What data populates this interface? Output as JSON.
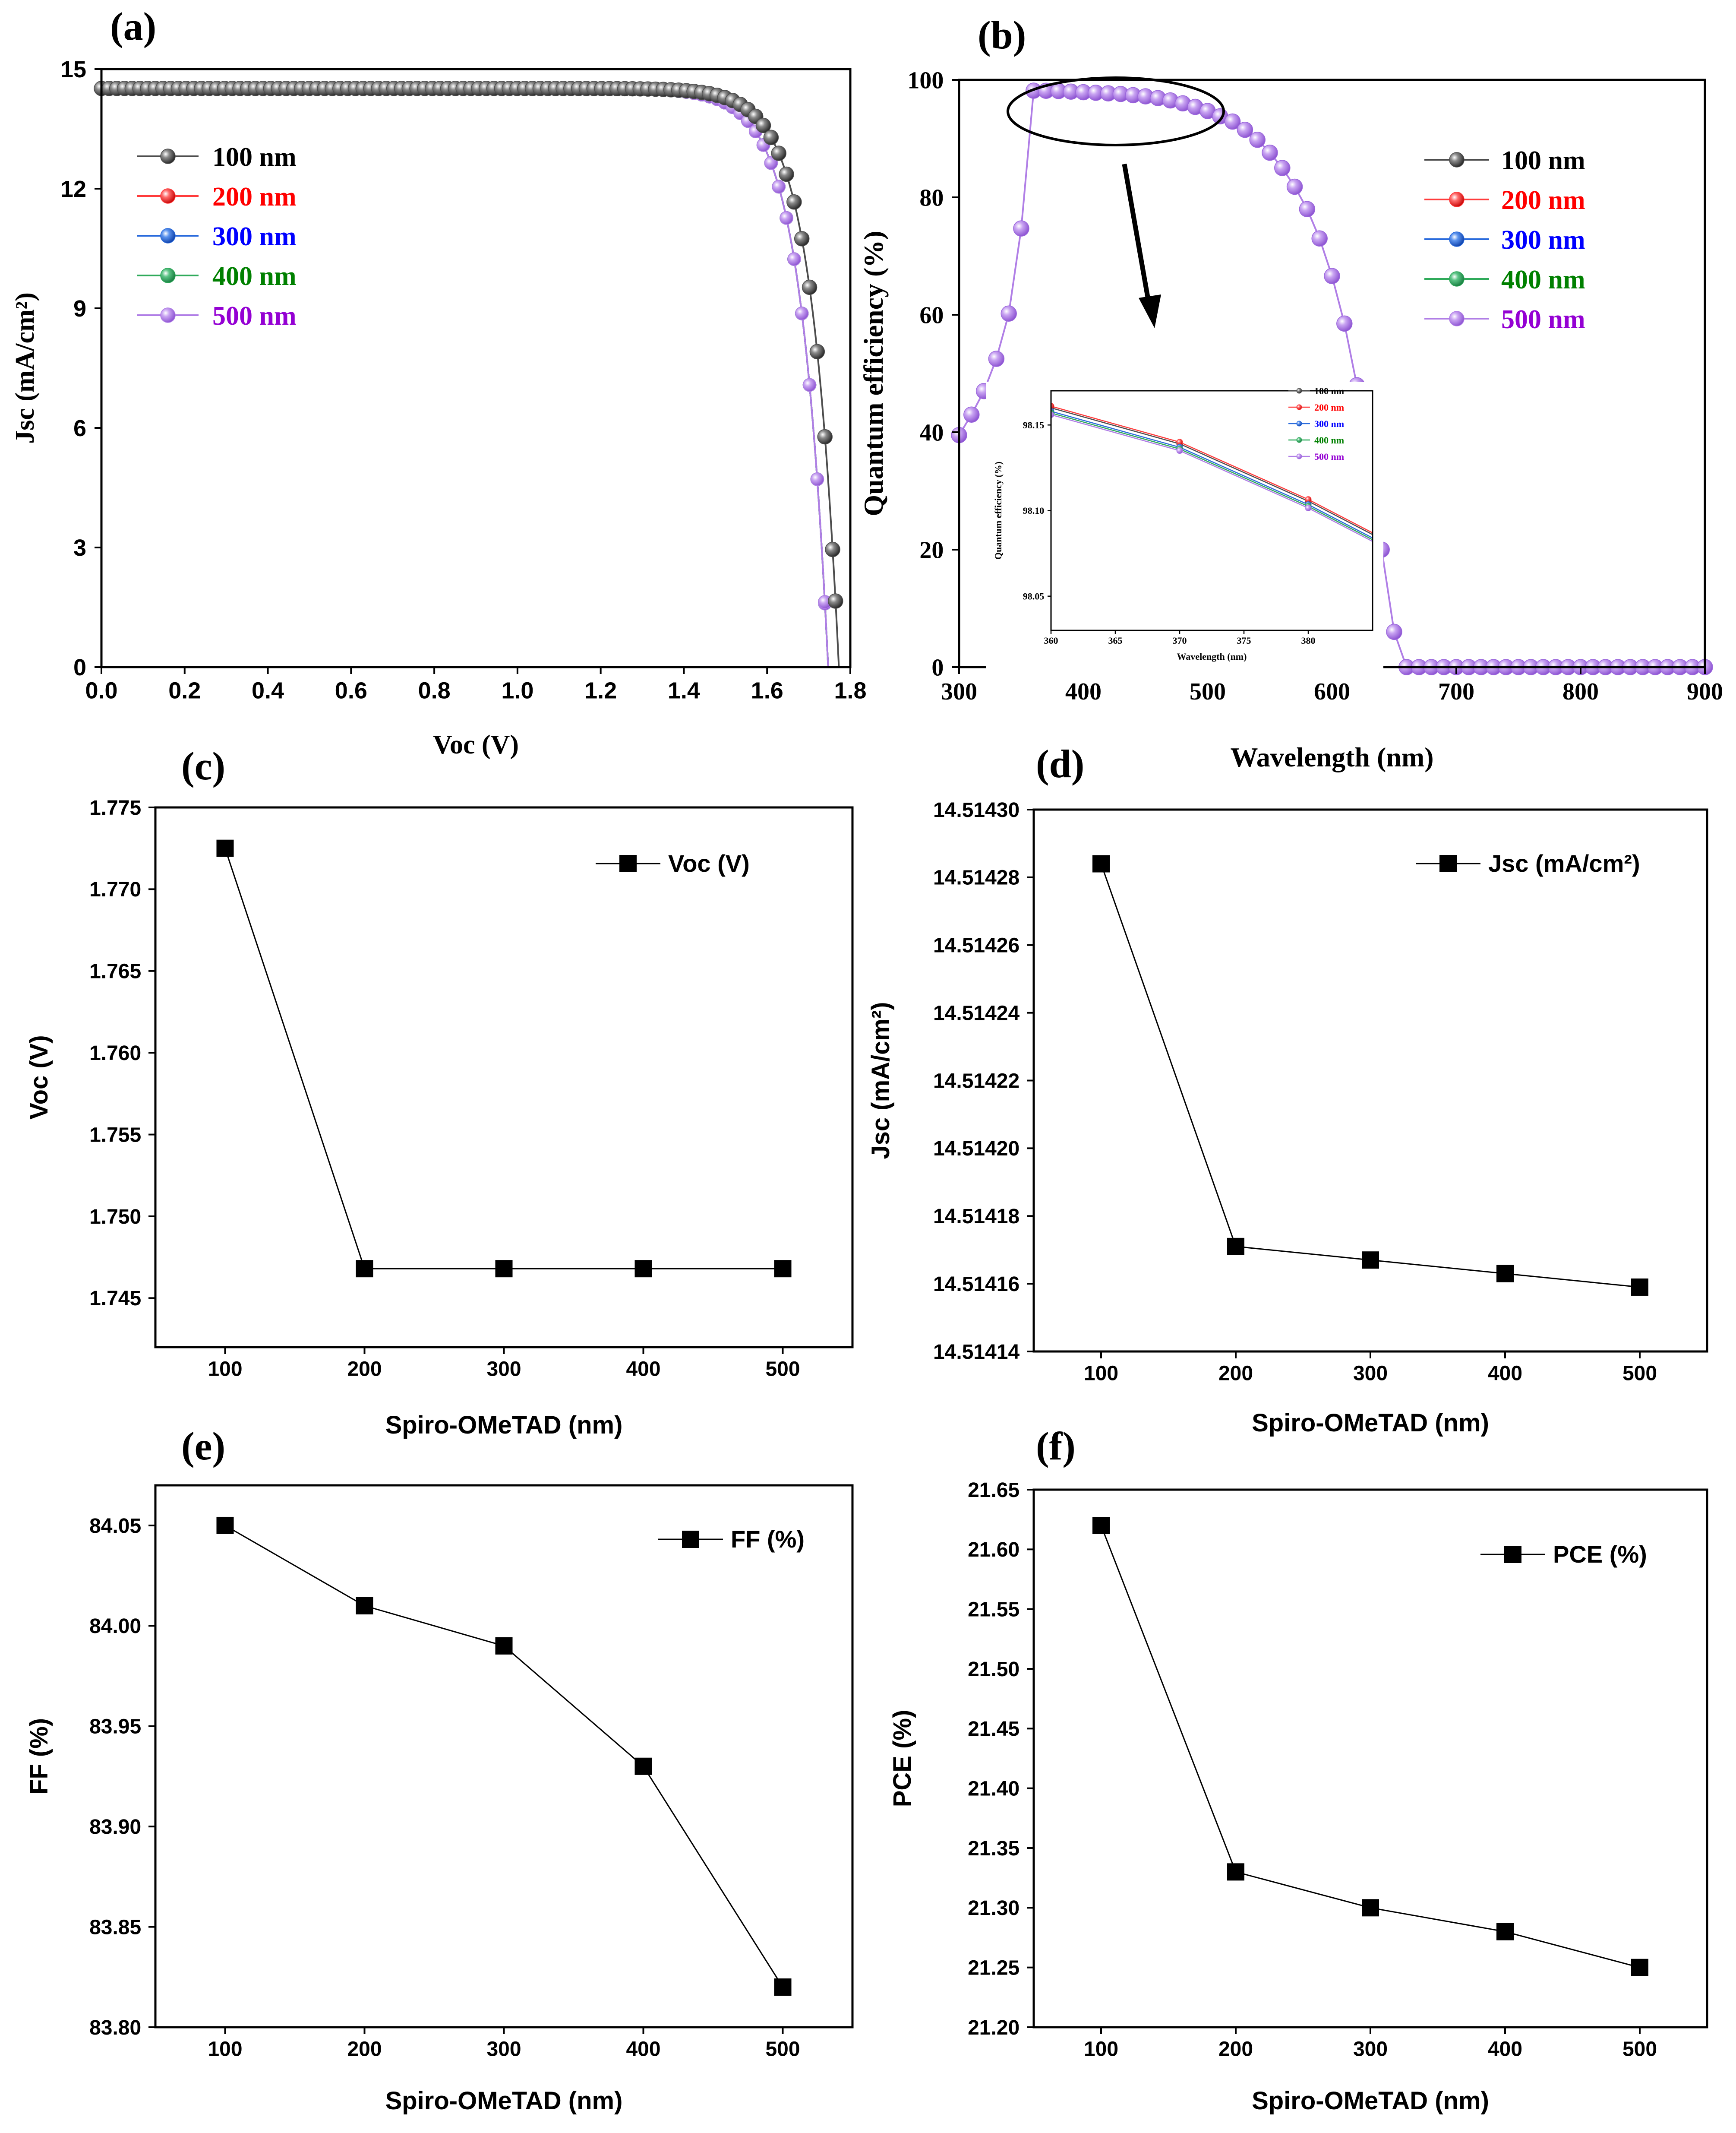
{
  "chart_data": [
    {
      "id": "a",
      "type": "line",
      "panel_label": "(a)",
      "xlabel": "Voc (V)",
      "ylabel": "Jsc (mA/cm²)",
      "xlim": [
        0,
        1.8
      ],
      "ylim": [
        0,
        15
      ],
      "xticks": [
        "0.0",
        "0.2",
        "0.4",
        "0.6",
        "0.8",
        "1.0",
        "1.2",
        "1.4",
        "1.6",
        "1.8"
      ],
      "yticks": [
        "0",
        "3",
        "6",
        "9",
        "12",
        "15"
      ],
      "series": [
        {
          "name": "100 nm",
          "color": "#4d4d4d",
          "voc": 1.7725,
          "jsc": 14.514,
          "knee": 0.066
        },
        {
          "name": "200 nm",
          "color": "#ff3b3b",
          "voc": 1.7468,
          "jsc": 14.514,
          "knee": 0.067
        },
        {
          "name": "300 nm",
          "color": "#2a6bdc",
          "voc": 1.7468,
          "jsc": 14.514,
          "knee": 0.067
        },
        {
          "name": "400 nm",
          "color": "#2faa5a",
          "voc": 1.7468,
          "jsc": 14.514,
          "knee": 0.067
        },
        {
          "name": "500 nm",
          "color": "#b07ee6",
          "voc": 1.7468,
          "jsc": 14.514,
          "knee": 0.067
        }
      ],
      "legend_text_colors": [
        "#000000",
        "#ff0000",
        "#0000ff",
        "#008000",
        "#9400d3"
      ]
    },
    {
      "id": "b",
      "type": "line",
      "panel_label": "(b)",
      "xlabel": "Wavelength (nm)",
      "ylabel": "Quantum efficiency (%)",
      "xlim": [
        300,
        900
      ],
      "ylim": [
        0,
        100
      ],
      "xticks": [
        "300",
        "400",
        "500",
        "600",
        "700",
        "800",
        "900"
      ],
      "yticks": [
        "0",
        "20",
        "40",
        "60",
        "80",
        "100"
      ],
      "qe_wavelengths": [
        300,
        310,
        320,
        330,
        340,
        350,
        360,
        370,
        380,
        390,
        400,
        410,
        420,
        430,
        440,
        450,
        460,
        470,
        480,
        490,
        500,
        510,
        520,
        530,
        540,
        550,
        560,
        570,
        580,
        590,
        600,
        610,
        620,
        630,
        640,
        650,
        660,
        670,
        680,
        690,
        700,
        710,
        720,
        730,
        740,
        750,
        760,
        770,
        780,
        790,
        800,
        810,
        820,
        830,
        840,
        850,
        860,
        870,
        880,
        890,
        900
      ],
      "qe_values": [
        39.5,
        43.0,
        47.0,
        52.5,
        60.2,
        74.7,
        98.16,
        98.14,
        98.1,
        98.0,
        97.9,
        97.8,
        97.7,
        97.6,
        97.4,
        97.2,
        96.9,
        96.5,
        96.0,
        95.4,
        94.7,
        93.8,
        92.9,
        91.5,
        89.8,
        87.6,
        85.0,
        81.8,
        78.0,
        73.0,
        66.6,
        58.5,
        48.0,
        36.5,
        20.0,
        6.0,
        0,
        0,
        0,
        0,
        0,
        0,
        0,
        0,
        0,
        0,
        0,
        0,
        0,
        0,
        0,
        0,
        0,
        0,
        0,
        0,
        0,
        0,
        0,
        0,
        0
      ],
      "legend": [
        {
          "name": "100 nm",
          "color": "#4d4d4d",
          "text_color": "#000000"
        },
        {
          "name": "200 nm",
          "color": "#ff3b3b",
          "text_color": "#ff0000"
        },
        {
          "name": "300 nm",
          "color": "#2a6bdc",
          "text_color": "#0000ff"
        },
        {
          "name": "400 nm",
          "color": "#2faa5a",
          "text_color": "#008000"
        },
        {
          "name": "500 nm",
          "color": "#b07ee6",
          "text_color": "#9400d3"
        }
      ],
      "inset": {
        "xlabel": "Wavelength (nm)",
        "ylabel": "Quantum efficiency (%)",
        "xlim": [
          360,
          385
        ],
        "ylim": [
          98.03,
          98.17
        ],
        "xticks": [
          "360",
          "365",
          "370",
          "375",
          "380"
        ],
        "yticks": [
          "98.05",
          "98.10",
          "98.15"
        ],
        "x": [
          360,
          370,
          380,
          385
        ],
        "series": [
          {
            "name": "100 nm",
            "color": "#4d4d4d",
            "values": [
              98.16,
              98.139,
              98.1055,
              98.086
            ]
          },
          {
            "name": "200 nm",
            "color": "#ff3b3b",
            "values": [
              98.161,
              98.14,
              98.1065,
              98.087
            ]
          },
          {
            "name": "300 nm",
            "color": "#2a6bdc",
            "values": [
              98.158,
              98.137,
              98.1035,
              98.084
            ]
          },
          {
            "name": "400 nm",
            "color": "#2faa5a",
            "values": [
              98.157,
              98.136,
              98.1025,
              98.083
            ]
          },
          {
            "name": "500 nm",
            "color": "#b07ee6",
            "values": [
              98.156,
              98.135,
              98.1015,
              98.082
            ]
          }
        ]
      }
    },
    {
      "id": "c",
      "type": "line",
      "panel_label": "(c)",
      "xlabel": "Spiro-OMeTAD (nm)",
      "ylabel": "Voc (V)",
      "legend": "Voc (V)",
      "categories": [
        "100",
        "200",
        "300",
        "400",
        "500"
      ],
      "x": [
        100,
        200,
        300,
        400,
        500
      ],
      "values": [
        1.7725,
        1.7468,
        1.7468,
        1.7468,
        1.7468
      ],
      "xlim": [
        50,
        550
      ],
      "ylim": [
        1.742,
        1.775
      ],
      "yticks": [
        "1.745",
        "1.750",
        "1.755",
        "1.760",
        "1.765",
        "1.770",
        "1.775"
      ]
    },
    {
      "id": "d",
      "type": "line",
      "panel_label": "(d)",
      "xlabel": "Spiro-OMeTAD (nm)",
      "ylabel": "Jsc (mA/cm²)",
      "legend": "Jsc (mA/cm²)",
      "categories": [
        "100",
        "200",
        "300",
        "400",
        "500"
      ],
      "x": [
        100,
        200,
        300,
        400,
        500
      ],
      "values": [
        14.514284,
        14.514171,
        14.514167,
        14.514163,
        14.514159
      ],
      "xlim": [
        50,
        550
      ],
      "ylim": [
        14.51414,
        14.5143
      ],
      "yticks": [
        "14.51414",
        "14.51416",
        "14.51418",
        "14.51420",
        "14.51422",
        "14.51424",
        "14.51426",
        "14.51428",
        "14.51430"
      ]
    },
    {
      "id": "e",
      "type": "line",
      "panel_label": "(e)",
      "xlabel": "Spiro-OMeTAD (nm)",
      "ylabel": "FF (%)",
      "legend": "FF (%)",
      "categories": [
        "100",
        "200",
        "300",
        "400",
        "500"
      ],
      "x": [
        100,
        200,
        300,
        400,
        500
      ],
      "values": [
        84.05,
        84.01,
        83.99,
        83.93,
        83.82
      ],
      "xlim": [
        50,
        550
      ],
      "ylim": [
        83.8,
        84.07
      ],
      "yticks": [
        "83.80",
        "83.85",
        "83.90",
        "83.95",
        "84.00",
        "84.05"
      ]
    },
    {
      "id": "f",
      "type": "line",
      "panel_label": "(f)",
      "xlabel": "Spiro-OMeTAD (nm)",
      "ylabel": "PCE (%)",
      "legend": "PCE (%)",
      "categories": [
        "100",
        "200",
        "300",
        "400",
        "500"
      ],
      "x": [
        100,
        200,
        300,
        400,
        500
      ],
      "values": [
        21.62,
        21.33,
        21.3,
        21.28,
        21.25
      ],
      "xlim": [
        50,
        550
      ],
      "ylim": [
        21.2,
        21.65
      ],
      "yticks": [
        "21.20",
        "21.25",
        "21.30",
        "21.35",
        "21.40",
        "21.45",
        "21.50",
        "21.55",
        "21.60",
        "21.65"
      ]
    }
  ]
}
